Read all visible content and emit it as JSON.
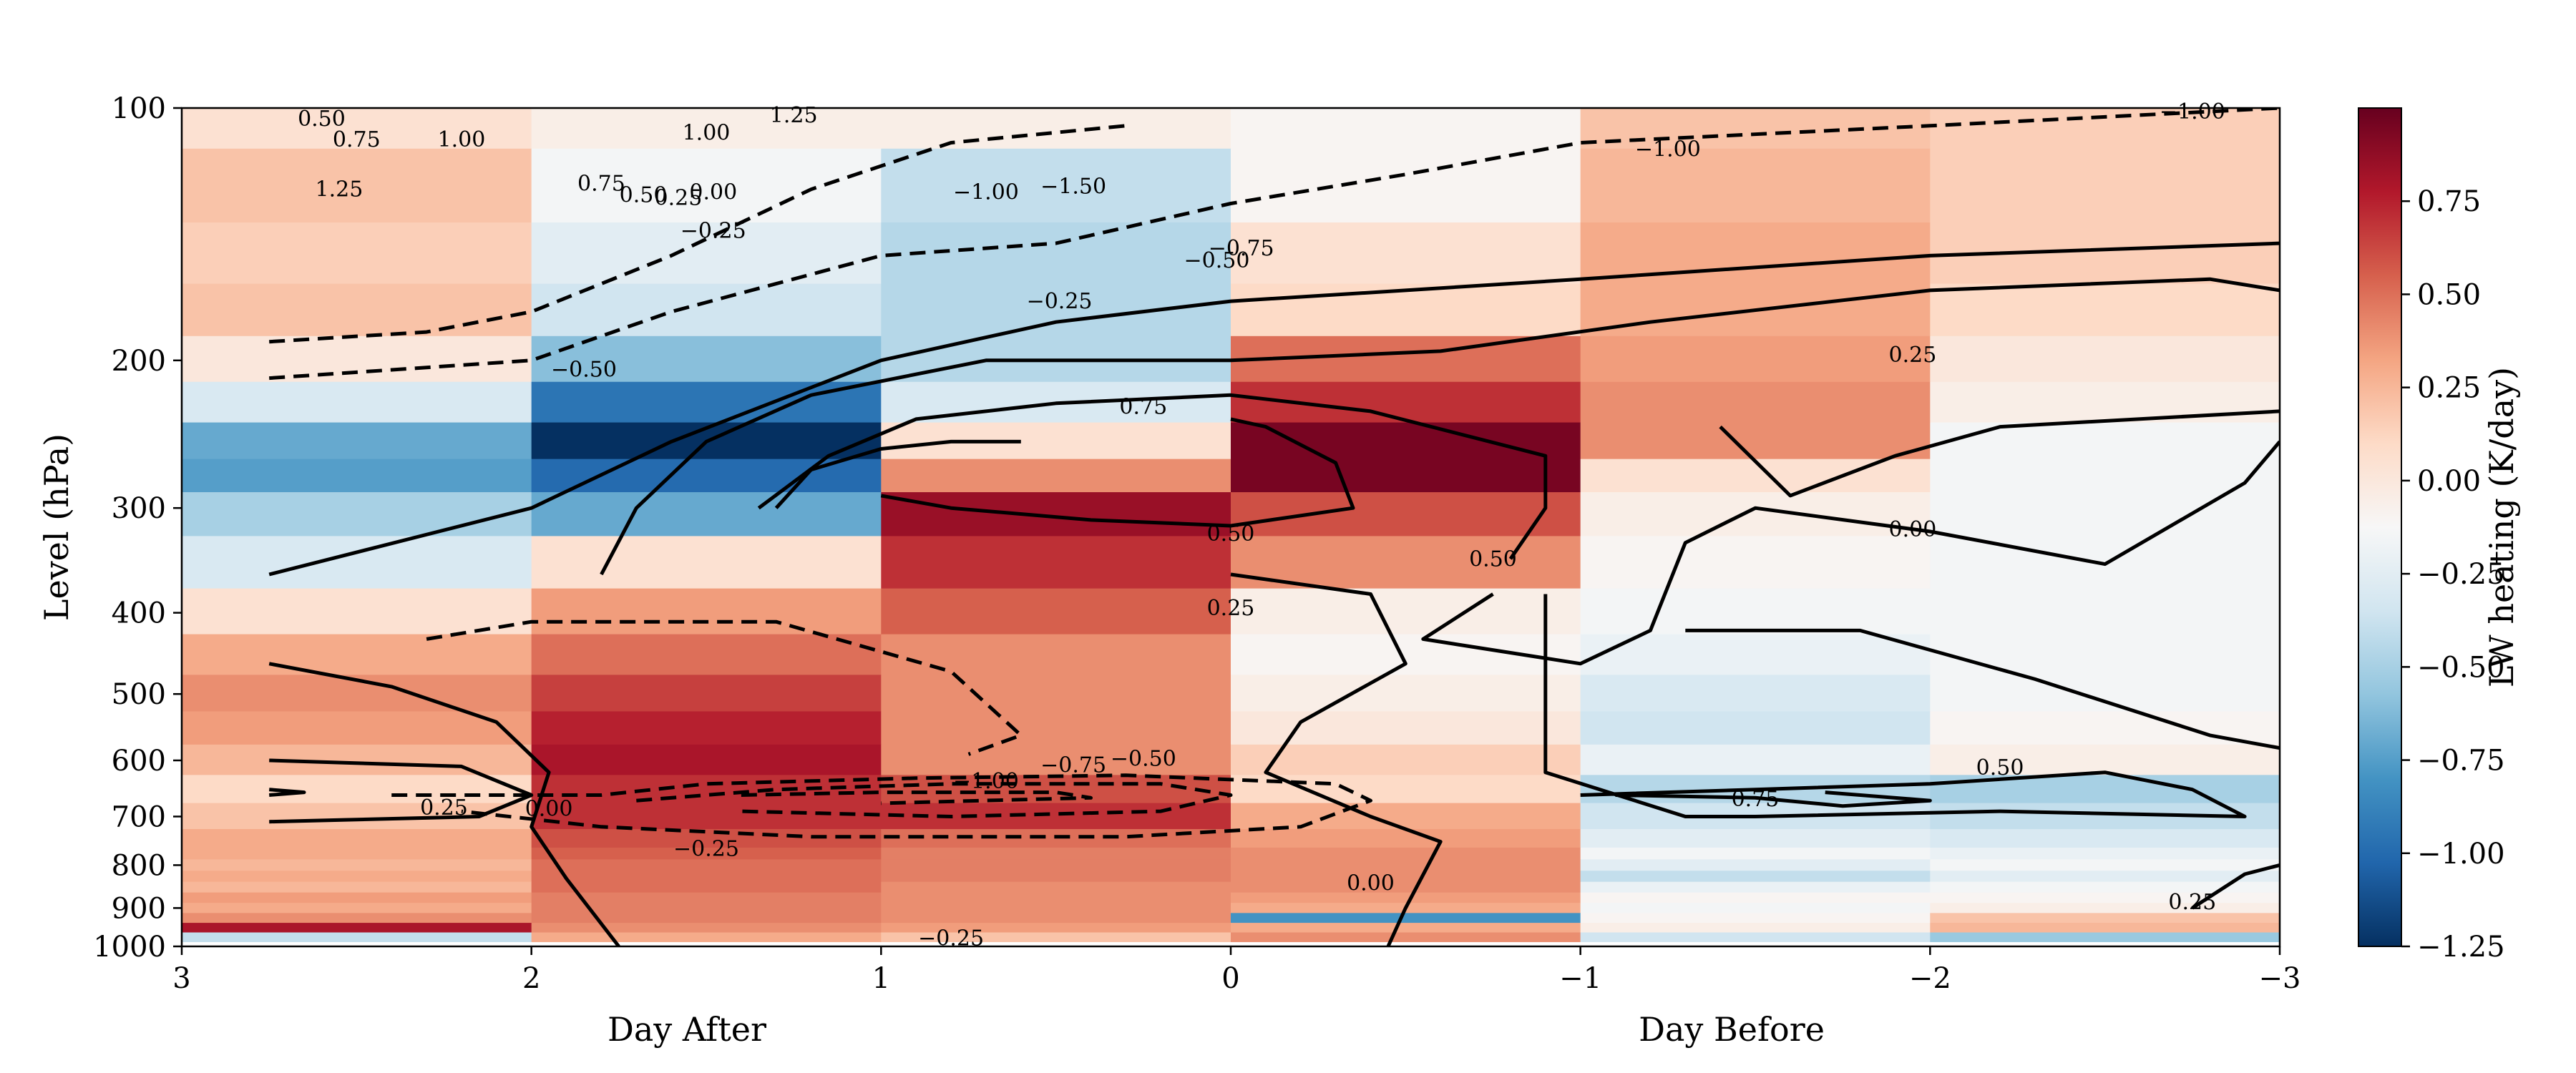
{
  "chart_data": {
    "type": "heatmap",
    "title": "",
    "xlabel_left": "Day After",
    "xlabel_right": "Day Before",
    "ylabel": "Level (hPa)",
    "x_range": [
      3,
      -3
    ],
    "y_range": [
      100,
      1000
    ],
    "y_scale": "log",
    "x_ticks": [
      "3",
      "2",
      "1",
      "0",
      "−1",
      "−2",
      "−3"
    ],
    "x_tick_values": [
      3,
      2,
      1,
      0,
      -1,
      -2,
      -3
    ],
    "y_ticks": [
      "100",
      "200",
      "300",
      "400",
      "500",
      "600",
      "700",
      "800",
      "900",
      "1000"
    ],
    "y_tick_values": [
      100,
      200,
      300,
      400,
      500,
      600,
      700,
      800,
      900,
      1000
    ],
    "colorbar": {
      "label": "LW heating (K/day)",
      "colormap": "RdBu_r",
      "range": [
        -1.25,
        1.0
      ],
      "ticks": [
        "0.75",
        "0.50",
        "0.25",
        "0.00",
        "−0.25",
        "−0.50",
        "−0.75",
        "−1.00",
        "−1.25"
      ],
      "tick_values": [
        0.75,
        0.5,
        0.25,
        0.0,
        -0.25,
        -0.5,
        -0.75,
        -1.0,
        -1.25
      ]
    },
    "heatmap": {
      "x_bins": [
        [
          3,
          2
        ],
        [
          2,
          1
        ],
        [
          1,
          0
        ],
        [
          0,
          -1
        ],
        [
          -1,
          -2
        ],
        [
          -2,
          -3
        ]
      ],
      "levels": [
        100,
        125,
        150,
        175,
        200,
        225,
        250,
        275,
        300,
        350,
        400,
        450,
        500,
        550,
        600,
        650,
        700,
        750,
        775,
        800,
        825,
        850,
        875,
        900,
        925,
        950,
        975,
        1000
      ],
      "values": [
        [
          0.05,
          -0.05,
          -0.05,
          -0.1,
          0.2,
          0.15
        ],
        [
          0.2,
          -0.15,
          -0.4,
          -0.1,
          0.25,
          0.15
        ],
        [
          0.15,
          -0.25,
          -0.45,
          0.05,
          0.3,
          0.15
        ],
        [
          0.2,
          -0.35,
          -0.45,
          0.1,
          0.3,
          0.1
        ],
        [
          0.0,
          -0.6,
          -0.45,
          0.5,
          0.35,
          0.0
        ],
        [
          -0.3,
          -0.95,
          -0.3,
          0.7,
          0.4,
          -0.05
        ],
        [
          -0.7,
          -1.25,
          0.05,
          0.95,
          0.4,
          -0.15
        ],
        [
          -0.75,
          -1.0,
          0.4,
          0.95,
          0.05,
          -0.15
        ],
        [
          -0.5,
          -0.7,
          0.85,
          0.6,
          -0.05,
          -0.15
        ],
        [
          -0.3,
          0.05,
          0.7,
          0.4,
          -0.1,
          -0.15
        ],
        [
          0.05,
          0.35,
          0.55,
          -0.05,
          -0.15,
          -0.15
        ],
        [
          0.3,
          0.5,
          0.4,
          -0.1,
          -0.2,
          -0.15
        ],
        [
          0.4,
          0.65,
          0.4,
          -0.05,
          -0.3,
          -0.15
        ],
        [
          0.35,
          0.75,
          0.4,
          0.0,
          -0.35,
          -0.1
        ],
        [
          0.25,
          0.8,
          0.4,
          0.15,
          -0.2,
          -0.05
        ],
        [
          0.1,
          0.7,
          0.6,
          0.1,
          -0.45,
          -0.5
        ],
        [
          0.2,
          0.7,
          0.7,
          0.3,
          -0.35,
          -0.4
        ],
        [
          0.3,
          0.6,
          0.5,
          0.35,
          -0.25,
          -0.3
        ],
        [
          0.3,
          0.55,
          0.45,
          0.4,
          -0.15,
          -0.2
        ],
        [
          0.25,
          0.5,
          0.45,
          0.4,
          -0.25,
          -0.15
        ],
        [
          0.3,
          0.5,
          0.45,
          0.4,
          -0.4,
          -0.25
        ],
        [
          0.25,
          0.5,
          0.4,
          0.4,
          -0.2,
          -0.15
        ],
        [
          0.35,
          0.45,
          0.4,
          0.35,
          -0.1,
          -0.1
        ],
        [
          0.3,
          0.45,
          0.4,
          0.3,
          -0.15,
          -0.05
        ],
        [
          0.4,
          0.45,
          0.4,
          -0.8,
          -0.1,
          0.2
        ],
        [
          0.8,
          0.4,
          0.35,
          0.3,
          -0.05,
          0.25
        ],
        [
          -0.4,
          0.3,
          0.2,
          0.4,
          -0.35,
          -0.55
        ]
      ]
    },
    "contours": {
      "style": "solid = positive, dashed = negative",
      "labels": [
        {
          "text": "0.50",
          "x": 2.6,
          "p": 103
        },
        {
          "text": "0.75",
          "x": 2.5,
          "p": 109
        },
        {
          "text": "1.00",
          "x": 2.2,
          "p": 109
        },
        {
          "text": "1.25",
          "x": 2.55,
          "p": 125
        },
        {
          "text": "1.00",
          "x": 1.5,
          "p": 107
        },
        {
          "text": "1.25",
          "x": 1.25,
          "p": 102
        },
        {
          "text": "0.75",
          "x": 1.8,
          "p": 123
        },
        {
          "text": "0.50",
          "x": 1.68,
          "p": 127
        },
        {
          "text": "0.25",
          "x": 1.58,
          "p": 128
        },
        {
          "text": "0.00",
          "x": 1.48,
          "p": 126
        },
        {
          "text": "−0.25",
          "x": 1.48,
          "p": 140
        },
        {
          "text": "−1.00",
          "x": 0.7,
          "p": 126
        },
        {
          "text": "−1.50",
          "x": 0.45,
          "p": 124
        },
        {
          "text": "−0.75",
          "x": -0.03,
          "p": 147
        },
        {
          "text": "−0.50",
          "x": 0.04,
          "p": 152
        },
        {
          "text": "−0.25",
          "x": 0.49,
          "p": 170
        },
        {
          "text": "−1.00",
          "x": -1.25,
          "p": 112
        },
        {
          "text": "−1.00",
          "x": -2.75,
          "p": 101
        },
        {
          "text": "−0.50",
          "x": 1.85,
          "p": 205
        },
        {
          "text": "0.75",
          "x": 0.25,
          "p": 227
        },
        {
          "text": "0.25",
          "x": -1.95,
          "p": 197
        },
        {
          "text": "0.50",
          "x": 0.0,
          "p": 322
        },
        {
          "text": "0.50",
          "x": -0.75,
          "p": 345
        },
        {
          "text": "0.25",
          "x": 0.0,
          "p": 395
        },
        {
          "text": "0.00",
          "x": -1.95,
          "p": 318
        },
        {
          "text": "0.25",
          "x": 2.25,
          "p": 683
        },
        {
          "text": "0.00",
          "x": 1.95,
          "p": 685
        },
        {
          "text": "−0.25",
          "x": 1.5,
          "p": 765
        },
        {
          "text": "−1.00",
          "x": 0.7,
          "p": 635
        },
        {
          "text": "−0.75",
          "x": 0.45,
          "p": 608
        },
        {
          "text": "−0.50",
          "x": 0.25,
          "p": 597
        },
        {
          "text": "0.00",
          "x": -0.4,
          "p": 840
        },
        {
          "text": "−0.25",
          "x": 0.8,
          "p": 978
        },
        {
          "text": "0.75",
          "x": -1.5,
          "p": 667
        },
        {
          "text": "0.50",
          "x": -2.2,
          "p": 612
        },
        {
          "text": "0.25",
          "x": -2.75,
          "p": 885
        }
      ]
    }
  }
}
